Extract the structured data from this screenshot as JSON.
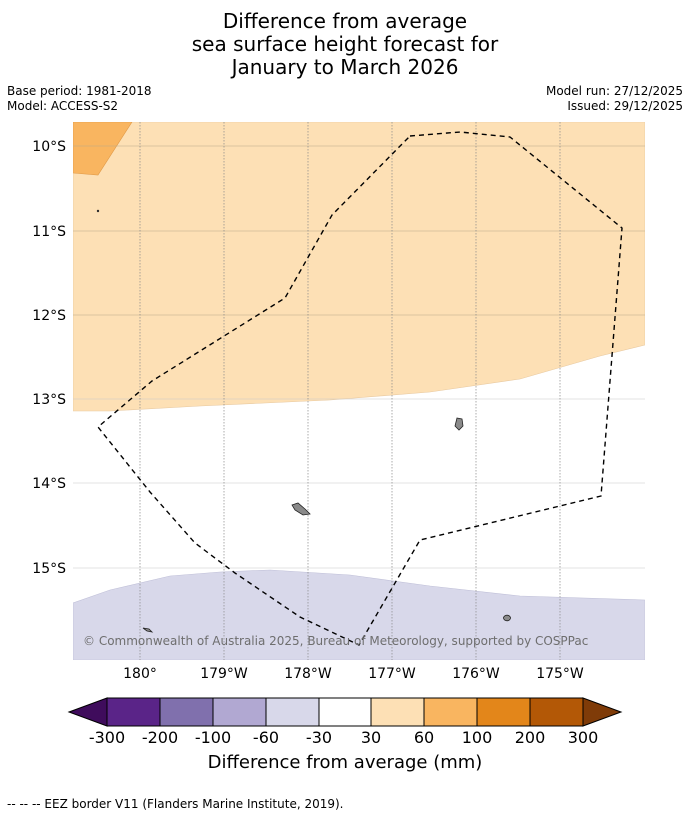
{
  "title": {
    "line1": "Difference from average",
    "line2": "sea surface height forecast for",
    "line3": "January to March 2026"
  },
  "meta": {
    "base_period": "Base period: 1981-2018",
    "model": "Model: ACCESS-S2",
    "model_run": "Model run: 27/12/2025",
    "issued": "Issued: 29/12/2025"
  },
  "map": {
    "lat_labels": [
      "10°S",
      "11°S",
      "12°S",
      "13°S",
      "14°S",
      "15°S"
    ],
    "lon_labels": [
      "180°",
      "179°W",
      "178°W",
      "177°W",
      "176°W",
      "175°W"
    ],
    "copyright": "© Commonwealth of Australia 2025, Bureau of Meteorology, supported by COSPPac"
  },
  "colorbar": {
    "title": "Difference from average (mm)",
    "ticks": [
      "-300",
      "-200",
      "-100",
      "-60",
      "-30",
      "30",
      "60",
      "100",
      "200",
      "300"
    ],
    "colors": [
      "#3f0c5c",
      "#5a2488",
      "#8070ad",
      "#b1a8d2",
      "#d8d8ea",
      "#ffffff",
      "#fde0b5",
      "#f9b560",
      "#e3861a",
      "#b35806",
      "#7f3b08"
    ]
  },
  "footnote": "-- -- -- EEZ border V11 (Flanders Marine Institute, 2019)."
}
